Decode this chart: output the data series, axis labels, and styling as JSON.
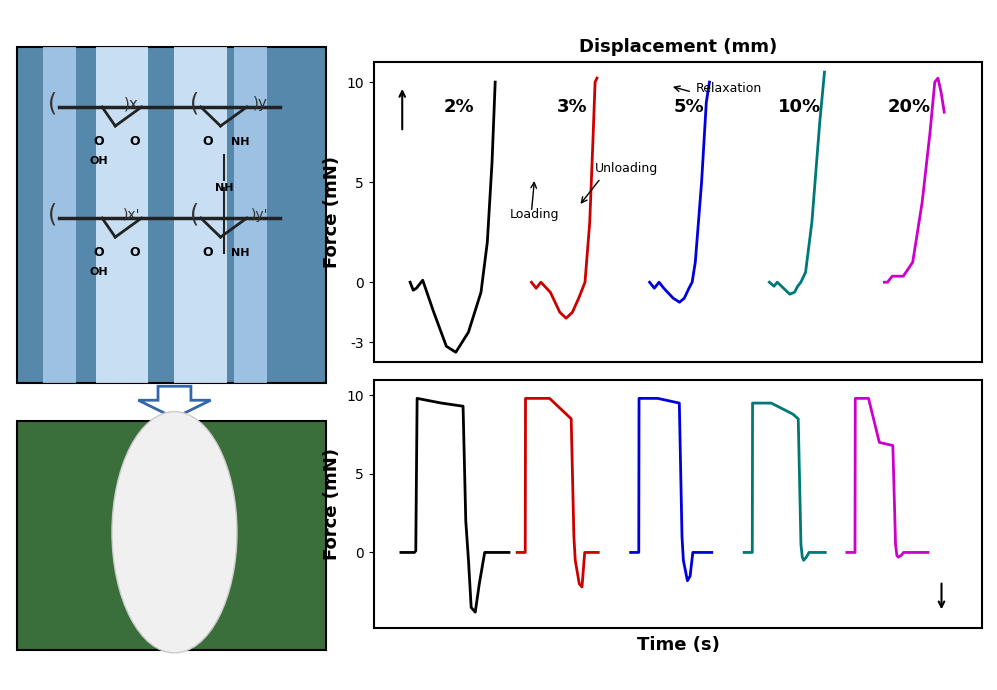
{
  "title_top": "Displacement (mm)",
  "ylabel": "Force (mN)",
  "xlabel_bottom": "Time (s)",
  "colors": [
    "#000000",
    "#cc0000",
    "#0000dd",
    "#007878",
    "#cc00cc"
  ],
  "labels": [
    "2%",
    "3%",
    "5%",
    "10%",
    "20%"
  ],
  "yticks_top": [
    -3,
    0,
    5,
    10
  ],
  "yticks_bot": [
    0,
    5,
    10
  ],
  "bg_top_image": "#6699bb",
  "bg_bot_image": "#3a6e3a",
  "disk_color": "#f0f0f0",
  "arrow_color": "#3366aa",
  "stripe_colors": [
    "#aaccee",
    "#ddeeff",
    "#ddeeff",
    "#aaccee"
  ]
}
